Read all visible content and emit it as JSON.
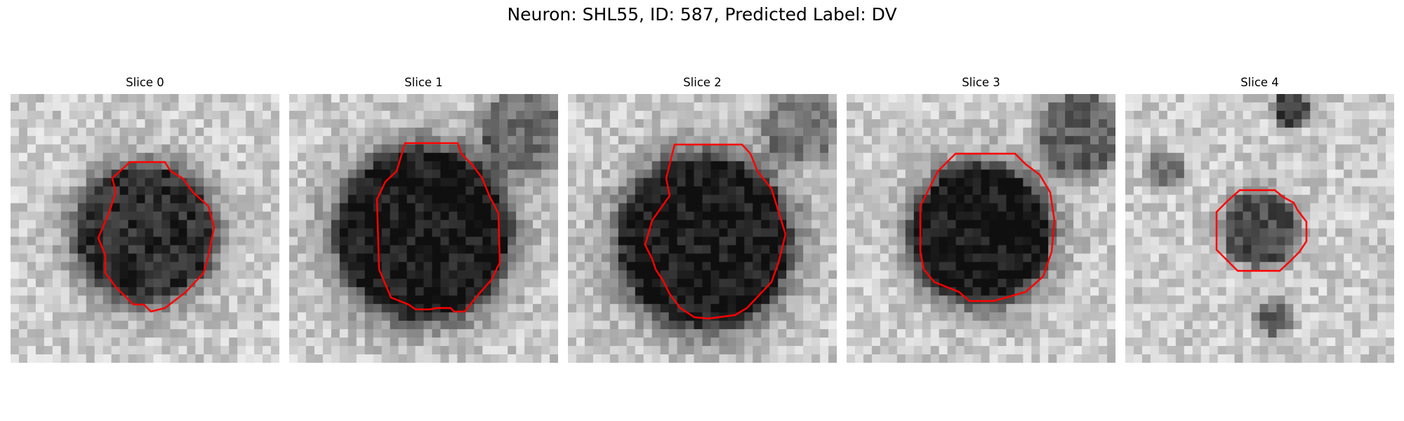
{
  "figure": {
    "title": "Neuron: SHL55, ID: 587, Predicted Label: DV"
  },
  "slices": [
    {
      "title": "Slice 0"
    },
    {
      "title": "Slice 1"
    },
    {
      "title": "Slice 2"
    },
    {
      "title": "Slice 3"
    },
    {
      "title": "Slice 4"
    }
  ],
  "colors": {
    "contour": "#ff0000",
    "image_map": "grayscale"
  }
}
